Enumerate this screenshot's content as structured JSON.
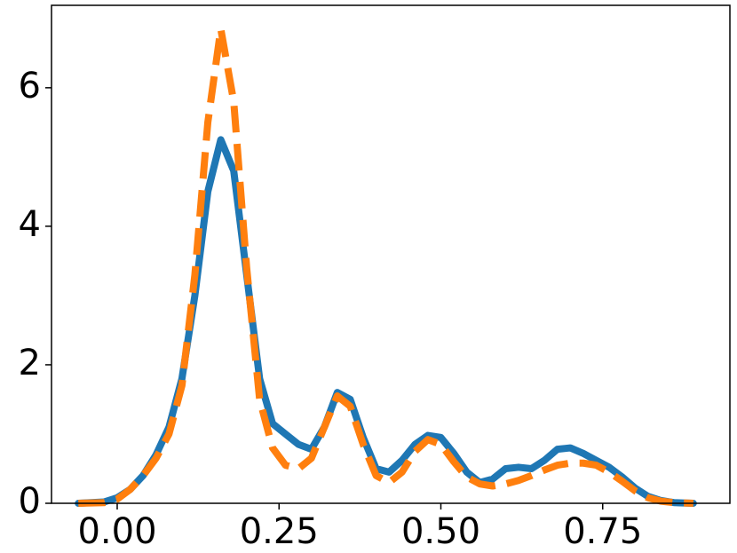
{
  "chart_data": {
    "type": "line",
    "x": [
      -0.06,
      -0.02,
      0,
      0.02,
      0.04,
      0.06,
      0.08,
      0.1,
      0.12,
      0.14,
      0.16,
      0.18,
      0.2,
      0.22,
      0.24,
      0.26,
      0.28,
      0.3,
      0.32,
      0.34,
      0.36,
      0.38,
      0.4,
      0.42,
      0.44,
      0.46,
      0.48,
      0.5,
      0.52,
      0.54,
      0.56,
      0.58,
      0.6,
      0.62,
      0.64,
      0.66,
      0.68,
      0.7,
      0.72,
      0.74,
      0.76,
      0.78,
      0.8,
      0.82,
      0.84,
      0.86,
      0.89
    ],
    "series": [
      {
        "color": "#1f77b4",
        "dashed": false,
        "values": [
          0,
          0.02,
          0.08,
          0.2,
          0.4,
          0.7,
          1.1,
          1.8,
          3.0,
          4.5,
          5.25,
          4.8,
          3.3,
          1.8,
          1.15,
          1.0,
          0.85,
          0.78,
          1.1,
          1.6,
          1.5,
          0.95,
          0.5,
          0.45,
          0.62,
          0.85,
          0.98,
          0.95,
          0.72,
          0.45,
          0.3,
          0.35,
          0.5,
          0.52,
          0.5,
          0.62,
          0.78,
          0.8,
          0.72,
          0.62,
          0.52,
          0.38,
          0.22,
          0.1,
          0.04,
          0.01,
          0
        ]
      },
      {
        "color": "#ff7f0e",
        "dashed": true,
        "values": [
          0,
          0.01,
          0.06,
          0.2,
          0.4,
          0.65,
          1.0,
          1.7,
          3.3,
          5.5,
          6.85,
          5.8,
          3.4,
          1.5,
          0.8,
          0.55,
          0.5,
          0.65,
          1.1,
          1.55,
          1.4,
          0.85,
          0.4,
          0.3,
          0.45,
          0.75,
          0.92,
          0.85,
          0.6,
          0.38,
          0.28,
          0.25,
          0.28,
          0.33,
          0.4,
          0.48,
          0.55,
          0.58,
          0.58,
          0.55,
          0.45,
          0.32,
          0.18,
          0.08,
          0.03,
          0.01,
          0
        ]
      }
    ],
    "xlim": [
      -0.1015,
      0.9465
    ],
    "ylim": [
      0,
      7.19
    ],
    "xticks": [
      {
        "value": 0,
        "label": "0.00"
      },
      {
        "value": 0.25,
        "label": "0.25"
      },
      {
        "value": 0.5,
        "label": "0.50"
      },
      {
        "value": 0.75,
        "label": "0.75"
      }
    ],
    "yticks": [
      0,
      2,
      4,
      6
    ],
    "grid": false
  }
}
